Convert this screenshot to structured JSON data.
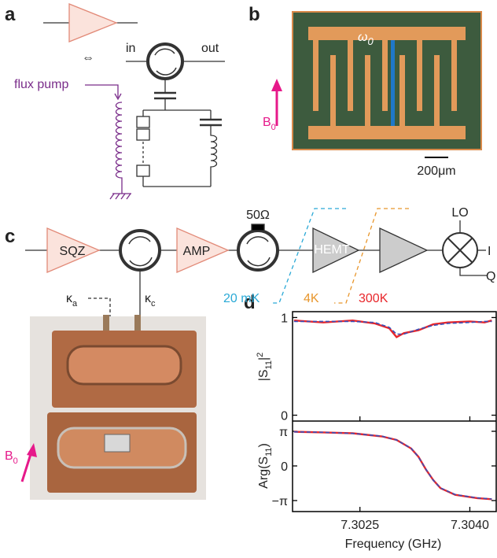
{
  "panel_labels": [
    "a",
    "b",
    "c",
    "d"
  ],
  "panel_a": {
    "arrow": "⇔",
    "flux_pump": "flux pump",
    "in": "in",
    "out": "out"
  },
  "panel_b": {
    "omega": {
      "symbol": "ω",
      "sub": "0"
    },
    "field": {
      "symbol": "B",
      "sub": "0"
    },
    "scale_bar": "200μm"
  },
  "panel_c": {
    "sqz": "SQZ",
    "amp": "AMP",
    "load": "50Ω",
    "hemt": "HEMT",
    "lo": "LO",
    "i": "I",
    "q": "Q",
    "stages": [
      "20 mK",
      "4K",
      "300K"
    ],
    "kappa_a": {
      "symbol": "κ",
      "sub": "a"
    },
    "kappa_c": {
      "symbol": "κ",
      "sub": "c"
    },
    "field": {
      "symbol": "B",
      "sub": "0"
    }
  },
  "chart_data": [
    {
      "type": "line",
      "ylabel": {
        "pre": "|S",
        "sub": "11",
        "post": "|",
        "sup": "2"
      },
      "x": [
        7.3016,
        7.302,
        7.3024,
        7.3027,
        7.3029,
        7.303,
        7.3031,
        7.3033,
        7.3035,
        7.3037,
        7.304,
        7.3042,
        7.3043
      ],
      "xlim": [
        7.30158,
        7.30436
      ],
      "ylim": [
        -0.06,
        1.06
      ],
      "yticks": [
        0,
        1
      ],
      "series": [
        {
          "color": "#e8262b",
          "dashed": false,
          "values": [
            0.97,
            0.95,
            0.97,
            0.94,
            0.89,
            0.8,
            0.84,
            0.87,
            0.93,
            0.95,
            0.96,
            0.95,
            0.97
          ]
        },
        {
          "color": "#3a4fb8",
          "dashed": true,
          "values": [
            0.96,
            0.96,
            0.96,
            0.95,
            0.9,
            0.83,
            0.83,
            0.88,
            0.92,
            0.94,
            0.95,
            0.96,
            0.96
          ]
        }
      ]
    },
    {
      "type": "line",
      "ylabel": {
        "pre": "Arg(S",
        "sub": "11",
        "post": ")"
      },
      "xlabel": "Frequency (GHz)",
      "x": [
        7.3016,
        7.302,
        7.3024,
        7.3028,
        7.303,
        7.3032,
        7.3033,
        7.3034,
        7.3035,
        7.3036,
        7.3038,
        7.3041,
        7.3043
      ],
      "xlim": [
        7.30158,
        7.30436
      ],
      "xticks": [
        7.3025,
        {
          "value": 7.304,
          "label": "7.3040"
        }
      ],
      "ylim": [
        -4.14,
        4.07
      ],
      "yticks": [
        {
          "value": 3.1416,
          "label": "π"
        },
        0,
        {
          "value": -3.1416,
          "label": "−π"
        }
      ],
      "series": [
        {
          "color": "#e8262b",
          "dashed": false,
          "values": [
            3.1,
            3.04,
            2.96,
            2.68,
            2.36,
            1.58,
            0.82,
            -0.32,
            -1.28,
            -2.02,
            -2.62,
            -2.92,
            -3.02
          ]
        },
        {
          "color": "#3a4fb8",
          "dashed": true,
          "values": [
            3.09,
            3.05,
            2.95,
            2.7,
            2.35,
            1.6,
            0.8,
            -0.3,
            -1.3,
            -2.0,
            -2.6,
            -2.9,
            -3.0
          ]
        }
      ]
    }
  ]
}
